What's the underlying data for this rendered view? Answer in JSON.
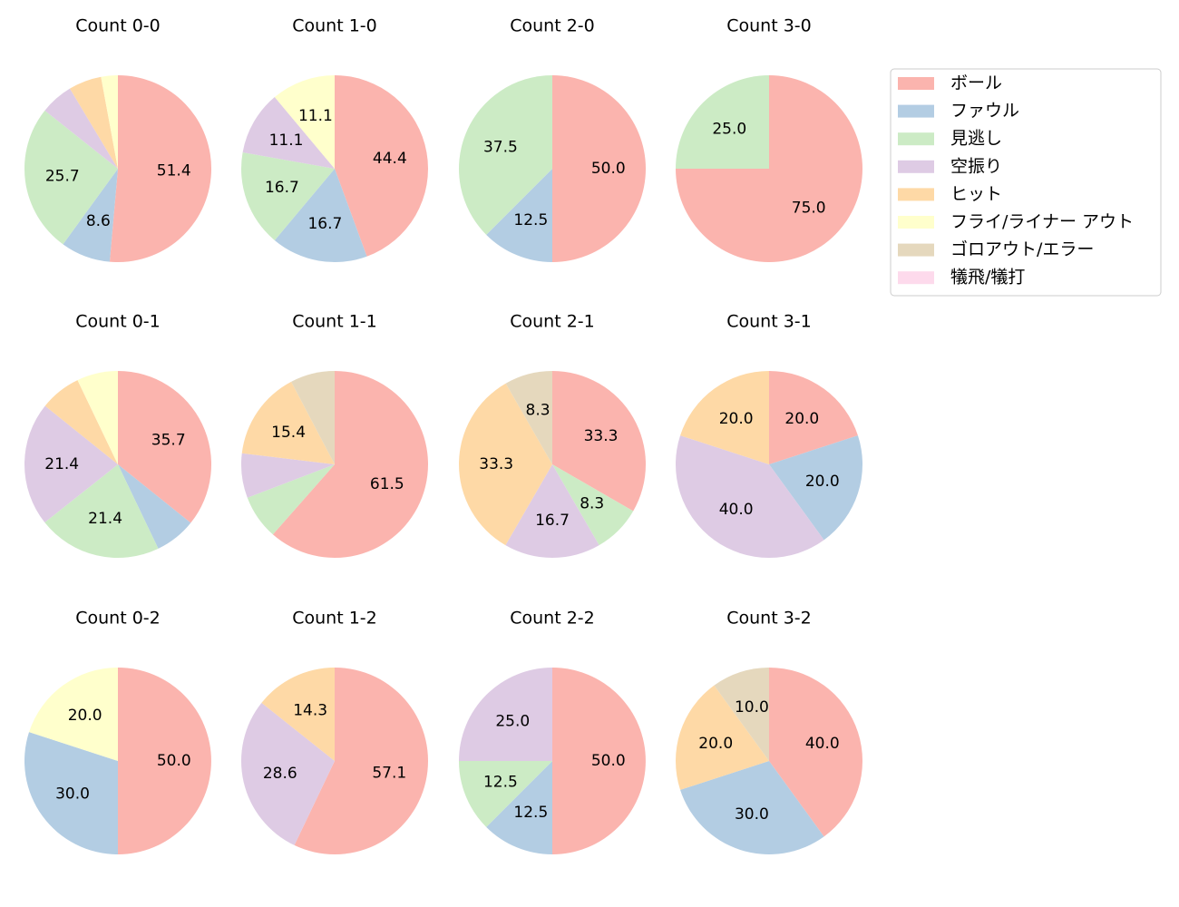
{
  "chart_data": {
    "type": "pie",
    "legend": {
      "placement": "top-right",
      "entries": [
        "ボール",
        "ファウル",
        "見逃し",
        "空振り",
        "ヒット",
        "フライ/ライナー アウト",
        "ゴロアウト/エラー",
        "犠飛/犠打"
      ]
    },
    "colors": [
      "#fbb4ae",
      "#b3cde3",
      "#ccebc5",
      "#decbe4",
      "#fed9a6",
      "#ffffcc",
      "#e5d8bd",
      "#fddaec"
    ],
    "pies": [
      {
        "title": "Count 0-0",
        "values": [
          51.4,
          8.6,
          25.7,
          5.7,
          5.7,
          2.9,
          0,
          0
        ],
        "labels": [
          "51.4",
          "8.6",
          "25.7",
          "",
          "",
          "",
          "",
          ""
        ]
      },
      {
        "title": "Count 1-0",
        "values": [
          44.4,
          16.7,
          16.7,
          11.1,
          0,
          11.1,
          0,
          0
        ],
        "labels": [
          "44.4",
          "16.7",
          "16.7",
          "11.1",
          "",
          "11.1",
          "",
          ""
        ]
      },
      {
        "title": "Count 2-0",
        "values": [
          50.0,
          12.5,
          37.5,
          0,
          0,
          0,
          0,
          0
        ],
        "labels": [
          "50.0",
          "12.5",
          "37.5",
          "",
          "",
          "",
          "",
          ""
        ]
      },
      {
        "title": "Count 3-0",
        "values": [
          75.0,
          0,
          25.0,
          0,
          0,
          0,
          0,
          0
        ],
        "labels": [
          "75.0",
          "",
          "25.0",
          "",
          "",
          "",
          "",
          ""
        ]
      },
      {
        "title": "Count 0-1",
        "values": [
          35.7,
          7.1,
          21.4,
          21.4,
          7.1,
          7.1,
          0,
          0
        ],
        "labels": [
          "35.7",
          "",
          "21.4",
          "21.4",
          "",
          "",
          "",
          ""
        ]
      },
      {
        "title": "Count 1-1",
        "values": [
          61.5,
          0,
          7.7,
          7.7,
          15.4,
          0,
          7.7,
          0
        ],
        "labels": [
          "61.5",
          "",
          "",
          "",
          "15.4",
          "",
          "",
          ""
        ]
      },
      {
        "title": "Count 2-1",
        "values": [
          33.3,
          0,
          8.3,
          16.7,
          33.3,
          0,
          8.3,
          0
        ],
        "labels": [
          "33.3",
          "",
          "8.3",
          "16.7",
          "33.3",
          "",
          "8.3",
          ""
        ]
      },
      {
        "title": "Count 3-1",
        "values": [
          20.0,
          20.0,
          0,
          40.0,
          20.0,
          0,
          0,
          0
        ],
        "labels": [
          "20.0",
          "20.0",
          "",
          "40.0",
          "20.0",
          "",
          "",
          ""
        ]
      },
      {
        "title": "Count 0-2",
        "values": [
          50.0,
          30.0,
          0,
          0,
          0,
          20.0,
          0,
          0
        ],
        "labels": [
          "50.0",
          "30.0",
          "",
          "",
          "",
          "20.0",
          "",
          ""
        ]
      },
      {
        "title": "Count 1-2",
        "values": [
          57.1,
          0,
          0,
          28.6,
          14.3,
          0,
          0,
          0
        ],
        "labels": [
          "57.1",
          "",
          "",
          "28.6",
          "14.3",
          "",
          "",
          ""
        ]
      },
      {
        "title": "Count 2-2",
        "values": [
          50.0,
          12.5,
          12.5,
          25.0,
          0,
          0,
          0,
          0
        ],
        "labels": [
          "50.0",
          "12.5",
          "12.5",
          "25.0",
          "",
          "",
          "",
          ""
        ]
      },
      {
        "title": "Count 3-2",
        "values": [
          40.0,
          30.0,
          0,
          0,
          20.0,
          0,
          10.0,
          0
        ],
        "labels": [
          "40.0",
          "30.0",
          "",
          "",
          "20.0",
          "",
          "10.0",
          ""
        ]
      }
    ]
  }
}
